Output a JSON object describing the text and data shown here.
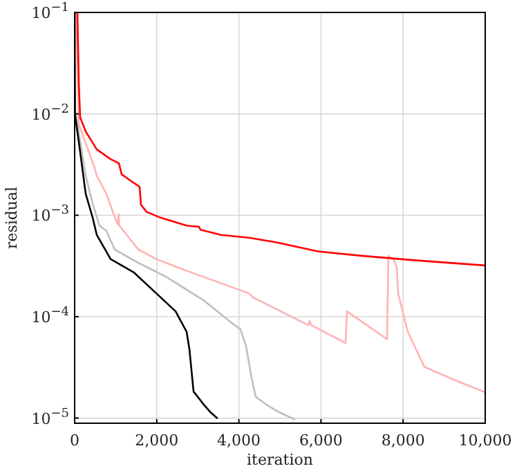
{
  "chart_data": {
    "type": "line",
    "xlabel": "iteration",
    "ylabel": "residual",
    "log": "y",
    "grid": true,
    "line_style": "solid",
    "marker": "none",
    "xlim": [
      0,
      10000
    ],
    "xticks": [
      0,
      {
        "value": 2000,
        "label": "2,000"
      },
      {
        "value": 4000,
        "label": "4,000"
      },
      {
        "value": 6000,
        "label": "6,000"
      },
      {
        "value": 8000,
        "label": "8,000"
      },
      {
        "value": 10000,
        "label": "10,000"
      }
    ],
    "ylim": [
      8.9e-06,
      0.1
    ],
    "yticks": [
      {
        "value": 1e-05,
        "label": "10$^{−5}$"
      },
      {
        "value": 0.0001,
        "label": "10$^{−4}$"
      },
      {
        "value": 0.001,
        "label": "10$^{−3}$"
      },
      {
        "value": 0.01,
        "label": "10$^{−2}$"
      },
      {
        "value": 0.1,
        "label": "10$^{−1}$"
      }
    ],
    "series": [
      {
        "color": "#ffb3b3",
        "x": [
          34,
          101,
          471,
          539,
          774,
          976,
          1044,
          1077,
          1080,
          1549,
          1987,
          2660,
          4242,
          4343,
          5690,
          5724,
          5758,
          6599,
          6633,
          7609,
          7643,
          7778,
          7845,
          7879,
          8114,
          8519,
          9293,
          9966
        ],
        "values": [
          0.1,
          0.00785,
          0.00306,
          0.00245,
          0.00163,
          0.00096,
          0.00082,
          0.00102,
          0.0008,
          0.00046,
          0.00037,
          0.00029,
          0.00017,
          0.000155,
          8.26e-05,
          9.1e-05,
          8.26e-05,
          5.5e-05,
          0.000113,
          6e-05,
          0.0004,
          0.00036,
          0.00031,
          0.00017,
          7.1e-05,
          3.2e-05,
          2.34e-05,
          1.82e-05
        ]
      },
      {
        "color": "#bfbfbf",
        "x": [
          34,
          269,
          438,
          606,
          774,
          976,
          1549,
          2222,
          3131,
          3805,
          4040,
          4175,
          4310,
          4411,
          4646,
          4916,
          5354
        ],
        "values": [
          0.0098,
          0.00245,
          0.00131,
          0.00079,
          0.0007,
          0.00046,
          0.00034,
          0.000248,
          0.000146,
          8.8e-05,
          7.5e-05,
          5.1e-05,
          2.5e-05,
          1.62e-05,
          1.38e-05,
          1.18e-05,
          9.7e-06
        ]
      },
      {
        "color": "#000000",
        "x": [
          0,
          10,
          135,
          269,
          438,
          539,
          875,
          1448,
          1987,
          2458,
          2727,
          2795,
          2896,
          3131,
          3300,
          3468
        ],
        "values": [
          0.1,
          0.0098,
          0.0042,
          0.00163,
          0.00095,
          0.00064,
          0.00037,
          0.000272,
          0.00017,
          0.000113,
          7.1e-05,
          4.8e-05,
          1.83e-05,
          1.38e-05,
          1.15e-05,
          1e-05
        ]
      },
      {
        "color": "#ff0000",
        "x": [
          67,
          101,
          135,
          269,
          539,
          875,
          1077,
          1145,
          1380,
          1582,
          1616,
          1751,
          2054,
          2727,
          3030,
          3064,
          3569,
          4242,
          4916,
          5926,
          6936,
          8283,
          10000
        ],
        "values": [
          0.1,
          0.0201,
          0.00918,
          0.00671,
          0.00446,
          0.00358,
          0.00326,
          0.00253,
          0.00217,
          0.00191,
          0.00127,
          0.00108,
          0.00096,
          0.00079,
          0.00077,
          0.00072,
          0.00064,
          0.0006,
          0.00054,
          0.00044,
          0.0004,
          0.00036,
          0.00032
        ]
      }
    ]
  }
}
